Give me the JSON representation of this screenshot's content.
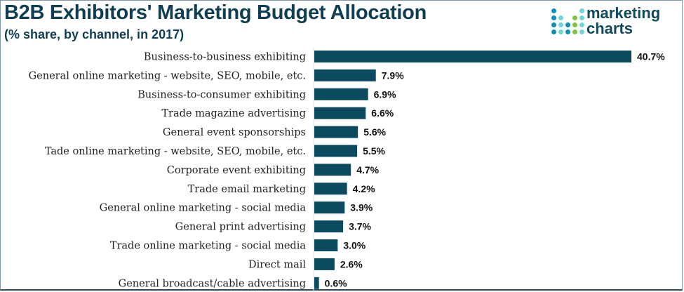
{
  "chart_data": {
    "type": "bar",
    "orientation": "horizontal",
    "title": "B2B Exhibitors' Marketing Budget Allocation",
    "subtitle": "(% share, by channel, in 2017)",
    "xlabel": "",
    "ylabel": "",
    "xlim": [
      0,
      40.7
    ],
    "grid": false,
    "bar_color": "#0b4a5f",
    "categories": [
      "Business-to-business exhibiting",
      "General online marketing - website, SEO, mobile, etc.",
      "Business-to-consumer exhibiting",
      "Trade magazine advertising",
      "General event sponsorships",
      "Tade online marketing - website, SEO, mobile, etc.",
      "Corporate event exhibiting",
      "Trade email marketing",
      "General online marketing - social media",
      "General print advertising",
      "Trade online marketing - social media",
      "Direct mail",
      "General broadcast/cable advertising"
    ],
    "values": [
      40.7,
      7.9,
      6.9,
      6.6,
      5.6,
      5.5,
      4.7,
      4.2,
      3.9,
      3.7,
      3.0,
      2.6,
      0.6
    ],
    "value_labels": [
      "40.7%",
      "7.9%",
      "6.9%",
      "6.6%",
      "5.6%",
      "5.5%",
      "4.7%",
      "4.2%",
      "3.9%",
      "3.7%",
      "3.0%",
      "2.6%",
      "0.6%"
    ]
  },
  "logo": {
    "line1": "marketing",
    "line2": "charts"
  }
}
